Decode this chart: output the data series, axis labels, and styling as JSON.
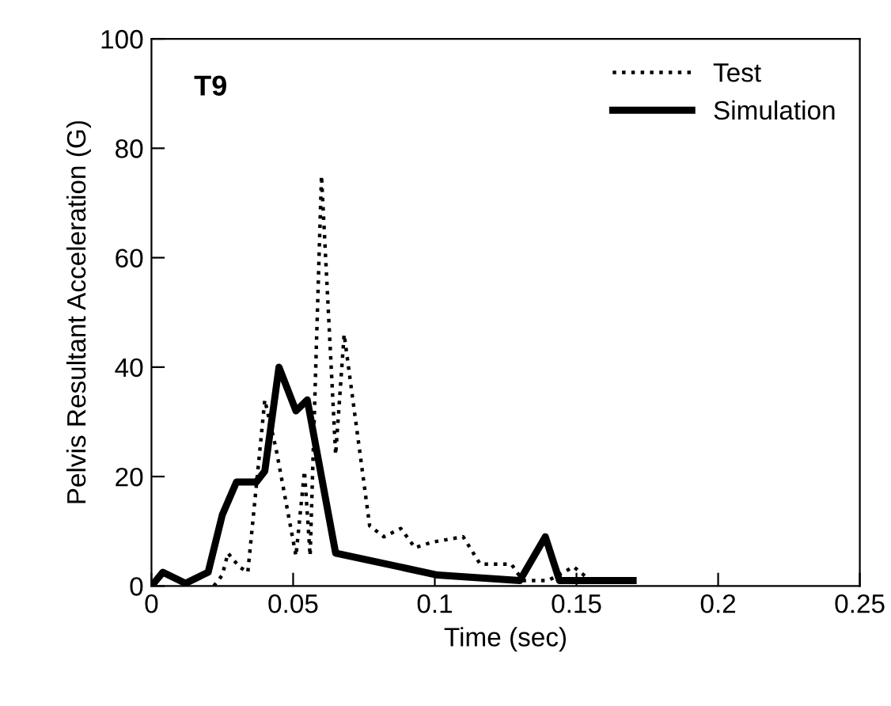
{
  "chart_data": {
    "type": "line",
    "xlabel": "Time (sec)",
    "ylabel": "Pelvis Resultant Acceleration (G)",
    "annotations": [
      "T9"
    ],
    "xlim": [
      0,
      0.25
    ],
    "ylim": [
      0,
      100
    ],
    "xticks": [
      0,
      0.05,
      0.1,
      0.15,
      0.2,
      0.25
    ],
    "yticks": [
      0,
      20,
      40,
      60,
      80,
      100
    ],
    "grid": false,
    "legend": "top right",
    "marker": "none",
    "series": [
      {
        "name": "Test",
        "color": "#000000",
        "line_style": "dotted",
        "x": [
          0.022,
          0.025,
          0.027,
          0.031,
          0.034,
          0.04,
          0.044,
          0.051,
          0.054,
          0.056,
          0.06,
          0.065,
          0.068,
          0.077,
          0.082,
          0.088,
          0.093,
          0.099,
          0.11,
          0.116,
          0.127,
          0.131,
          0.14,
          0.149,
          0.155,
          0.17
        ],
        "values": [
          0,
          2,
          6,
          3.5,
          2.5,
          34,
          25,
          5.5,
          21,
          5.5,
          75,
          24,
          46,
          11,
          9,
          10.5,
          7,
          8,
          9,
          4,
          4,
          1,
          1,
          3.5,
          1,
          1
        ]
      },
      {
        "name": "Simulation",
        "color": "#000000",
        "line_style": "solid",
        "x": [
          0,
          0.004,
          0.012,
          0.02,
          0.025,
          0.03,
          0.037,
          0.04,
          0.045,
          0.051,
          0.055,
          0.065,
          0.101,
          0.13,
          0.139,
          0.144,
          0.17
        ],
        "values": [
          0,
          2.5,
          0.5,
          2.5,
          13,
          19,
          19,
          21,
          40,
          32,
          34,
          6,
          2,
          1,
          9,
          1,
          1
        ]
      }
    ]
  }
}
